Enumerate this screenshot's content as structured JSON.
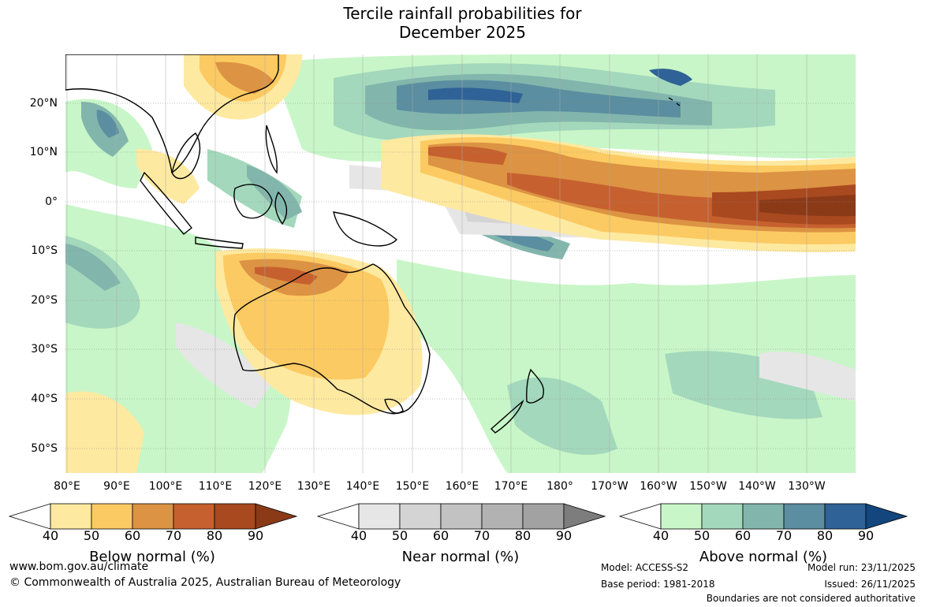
{
  "title": {
    "line1": "Tercile rainfall probabilities for",
    "line2": "December 2025"
  },
  "map": {
    "lat_labels": [
      "20°N",
      "10°N",
      "0°",
      "10°S",
      "20°S",
      "30°S",
      "40°S",
      "50°S"
    ],
    "lon_labels": [
      "80°E",
      "90°E",
      "100°E",
      "110°E",
      "120°E",
      "130°E",
      "140°E",
      "150°E",
      "160°E",
      "170°E",
      "180°",
      "170°W",
      "160°W",
      "150°W",
      "140°W",
      "130°W"
    ]
  },
  "colorbars": {
    "ticks": [
      "40",
      "50",
      "60",
      "70",
      "80",
      "90"
    ],
    "below": {
      "title": "Below normal (%)",
      "colors": [
        "#ffffff",
        "#fee9a0",
        "#fcca62",
        "#dc9343",
        "#c6612f",
        "#a9491f",
        "#8b3a18"
      ]
    },
    "near": {
      "title": "Near normal (%)",
      "colors": [
        "#ffffff",
        "#e6e6e6",
        "#d4d4d4",
        "#c2c2c2",
        "#b2b2b2",
        "#a2a2a2",
        "#7d7d7d"
      ]
    },
    "above": {
      "title": "Above normal (%)",
      "colors": [
        "#ffffff",
        "#c8f6c8",
        "#a4d8bc",
        "#82b6ac",
        "#5a8ea0",
        "#2f6296",
        "#14467e"
      ]
    }
  },
  "footer": {
    "website": "www.bom.gov.au/climate",
    "copyright": "© Commonwealth of Australia 2025, Australian Bureau of Meteorology",
    "model": "Model: ACCESS-S2",
    "base_period": "Base period: 1981-2018",
    "model_run": "Model run: 23/11/2025",
    "issued": "Issued: 26/11/2025",
    "disclaimer": "Boundaries are not considered authoritative"
  }
}
